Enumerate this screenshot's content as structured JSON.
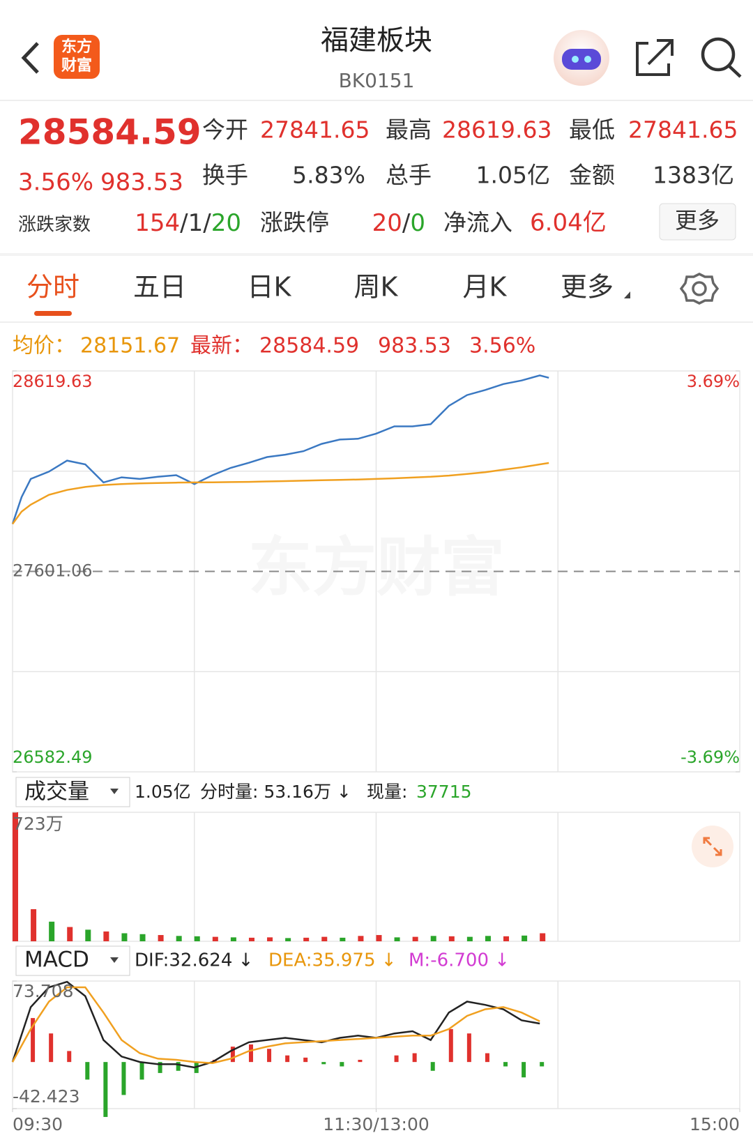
{
  "header": {
    "title": "福建板块",
    "code": "BK0151",
    "logo": [
      "东方",
      "财富"
    ]
  },
  "quote": {
    "price": "28584.59",
    "change_pct": "3.56%",
    "change": "983.53",
    "fields": [
      {
        "label": "今开",
        "value": "27841.65"
      },
      {
        "label": "最高",
        "value": "28619.63"
      },
      {
        "label": "最低",
        "value": "27841.65"
      },
      {
        "label": "换手",
        "value": "5.83%"
      },
      {
        "label": "总手",
        "value": "1.05亿"
      },
      {
        "label": "金额",
        "value": "1383亿"
      }
    ],
    "breadth": {
      "label": "涨跌家数",
      "parts": [
        "154",
        "/",
        "1",
        "/",
        "20"
      ]
    },
    "limit": {
      "label": "涨跌停",
      "parts": [
        "20",
        "/",
        "0"
      ]
    },
    "inflow": {
      "label": "净流入",
      "value": "6.04亿"
    },
    "more": "更多"
  },
  "tabs": [
    "分时",
    "五日",
    "日K",
    "周K",
    "月K",
    "更多"
  ],
  "active_tab": 0,
  "chart_data": [
    {
      "type": "line",
      "watermark": "东方财富",
      "avg_label": "均价：",
      "avg_value": "28151.67",
      "last_label": "最新：",
      "last_value": "28584.59",
      "last_change": "983.53",
      "last_pct": "3.56%",
      "x": [
        0,
        3,
        6,
        12,
        18,
        24,
        30,
        36,
        42,
        48,
        54,
        60,
        66,
        72,
        78,
        84,
        90,
        96,
        102,
        108,
        114,
        120,
        126,
        132,
        138,
        144,
        150,
        156,
        162,
        168,
        174,
        177
      ],
      "series": [
        {
          "color": "#3a78c2",
          "values": [
            27842,
            27979,
            28071,
            28108,
            28164,
            28145,
            28053,
            28079,
            28071,
            28082,
            28090,
            28045,
            28090,
            28127,
            28153,
            28182,
            28194,
            28212,
            28249,
            28271,
            28275,
            28301,
            28338,
            28338,
            28349,
            28442,
            28497,
            28523,
            28553,
            28571,
            28597,
            28585
          ]
        },
        {
          "color": "#f0a020",
          "values": [
            27842,
            27905,
            27940,
            27990,
            28015,
            28030,
            28040,
            28045,
            28048,
            28050,
            28052,
            28053,
            28054,
            28055,
            28056,
            28058,
            28060,
            28062,
            28064,
            28066,
            28068,
            28071,
            28074,
            28078,
            28082,
            28088,
            28096,
            28105,
            28118,
            28130,
            28145,
            28152
          ]
        }
      ],
      "xlim": [
        0,
        240
      ],
      "ylim": [
        26582.49,
        28619.63
      ],
      "yticks": [
        28619.63,
        27601.06,
        26582.49
      ],
      "baseline": 27601.06,
      "y2lim": [
        -3.69,
        3.69
      ],
      "y2ticks": [
        {
          "value": 3.69,
          "label": "3.69%"
        },
        {
          "value": -3.69,
          "label": "-3.69%"
        }
      ]
    },
    {
      "type": "bar",
      "selector": "成交量",
      "total": "1.05亿",
      "tick_volume": "分时量: 53.16万 ↓",
      "current_label": "现量:",
      "current_value": "37715",
      "x": [
        0,
        6,
        12,
        18,
        24,
        30,
        36,
        42,
        48,
        54,
        60,
        66,
        72,
        78,
        84,
        90,
        96,
        102,
        108,
        114,
        120,
        126,
        132,
        138,
        144,
        150,
        156,
        162,
        168,
        174
      ],
      "values": [
        723,
        180,
        110,
        80,
        65,
        55,
        45,
        40,
        35,
        30,
        28,
        25,
        22,
        20,
        22,
        18,
        20,
        25,
        20,
        30,
        35,
        22,
        25,
        30,
        28,
        25,
        30,
        28,
        32,
        45
      ],
      "colors": [
        "#e0312d",
        "#e0312d",
        "#2aa52a",
        "#e0312d",
        "#2aa52a",
        "#e0312d",
        "#2aa52a",
        "#2aa52a",
        "#e0312d",
        "#2aa52a",
        "#2aa52a",
        "#e0312d",
        "#2aa52a",
        "#e0312d",
        "#e0312d",
        "#2aa52a",
        "#e0312d",
        "#e0312d",
        "#2aa52a",
        "#e0312d",
        "#e0312d",
        "#2aa52a",
        "#e0312d",
        "#2aa52a",
        "#e0312d",
        "#2aa52a",
        "#2aa52a",
        "#e0312d",
        "#2aa52a",
        "#e0312d"
      ],
      "xlim": [
        0,
        240
      ],
      "ylim": [
        0,
        723
      ],
      "yticks": [
        {
          "value": 723,
          "label": "723万"
        }
      ]
    },
    {
      "type": "macd",
      "selector": "MACD",
      "dif_label": "DIF:32.624 ↓",
      "dea_label": "DEA:35.975 ↓",
      "m_label": "M:-6.700 ↓",
      "x": [
        0,
        6,
        12,
        18,
        24,
        30,
        36,
        42,
        48,
        54,
        60,
        66,
        72,
        78,
        84,
        90,
        96,
        102,
        108,
        114,
        120,
        126,
        132,
        138,
        144,
        150,
        156,
        162,
        168,
        174
      ],
      "series": [
        {
          "color": "#222222",
          "values": [
            0,
            50,
            68,
            73,
            60,
            20,
            5,
            0,
            -2,
            -2,
            -5,
            0,
            10,
            18,
            20,
            22,
            20,
            18,
            22,
            24,
            22,
            26,
            28,
            20,
            45,
            55,
            52,
            48,
            38,
            35
          ]
        },
        {
          "color": "#f0a020",
          "values": [
            0,
            30,
            55,
            68,
            68,
            45,
            20,
            8,
            3,
            2,
            0,
            -1,
            3,
            10,
            14,
            17,
            18,
            19,
            20,
            21,
            22,
            23,
            24,
            24,
            30,
            42,
            48,
            50,
            45,
            37
          ]
        }
      ],
      "bars": [
        0,
        40,
        26,
        10,
        -16,
        -50,
        -30,
        -16,
        -10,
        -8,
        -10,
        2,
        14,
        16,
        12,
        6,
        4,
        -2,
        -4,
        2,
        0,
        6,
        8,
        -8,
        30,
        26,
        8,
        -4,
        -14,
        -4
      ],
      "up_color": "#e0312d",
      "down_color": "#2aa52a",
      "xlim": [
        0,
        240
      ],
      "ylim": [
        -42.423,
        73.708
      ],
      "yticks": [
        73.708,
        -42.423
      ],
      "xticks": [
        {
          "value": 0,
          "label": "09:30"
        },
        {
          "value": 120,
          "label": "11:30/13:00"
        },
        {
          "value": 240,
          "label": "15:00"
        }
      ]
    }
  ]
}
